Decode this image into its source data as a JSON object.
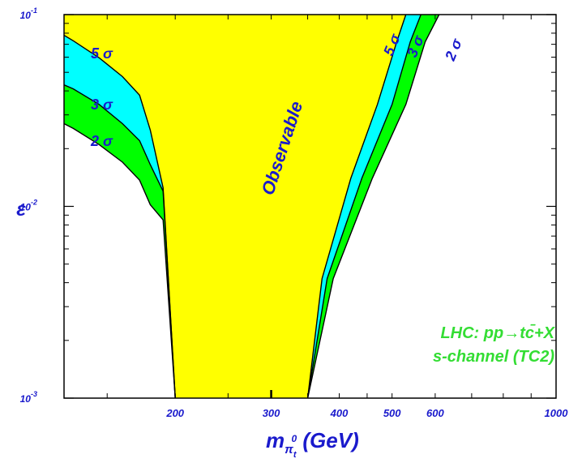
{
  "chart_data": {
    "type": "area",
    "title": "",
    "xlabel": {
      "main": "m",
      "sub": "π",
      "subsub": "t",
      "sup": "0",
      "unit": " (GeV)"
    },
    "ylabel": "ε",
    "x_scale": "log",
    "y_scale": "log",
    "xlim": [
      125,
      1000
    ],
    "ylim": [
      0.001,
      0.1
    ],
    "x_ticks": [
      {
        "value": 200,
        "label": "200"
      },
      {
        "value": 300,
        "label": "300"
      },
      {
        "value": 400,
        "label": "400"
      },
      {
        "value": 500,
        "label": "500"
      },
      {
        "value": 600,
        "label": "600"
      },
      {
        "value": 1000,
        "label": "1000"
      }
    ],
    "y_ticks": [
      {
        "value": 0.1,
        "base": "10",
        "exp": "-1"
      },
      {
        "value": 0.01,
        "base": "10",
        "exp": "-2"
      },
      {
        "value": 0.001,
        "base": "10",
        "exp": "-3"
      }
    ],
    "colors": {
      "observable": "#ffff00",
      "sigma5": "#00ffff",
      "sigma3": "#00ff00",
      "sigma2": "#00ff00",
      "label": "#1a1acc",
      "process_text": "#33dd33"
    },
    "series": [
      {
        "name": "5σ",
        "label": "5 σ",
        "left": [
          [
            125,
            0.078
          ],
          [
            130,
            0.073
          ],
          [
            145,
            0.0595
          ],
          [
            160,
            0.0475
          ],
          [
            172,
            0.038
          ],
          [
            180,
            0.025
          ],
          [
            190,
            0.0125
          ],
          [
            200,
            0.001
          ]
        ],
        "right": [
          [
            350,
            0.001
          ],
          [
            372,
            0.0042
          ],
          [
            420,
            0.014
          ],
          [
            470,
            0.034
          ],
          [
            510,
            0.072
          ],
          [
            530,
            0.1
          ]
        ]
      },
      {
        "name": "3σ",
        "label": "3 σ",
        "left": [
          [
            125,
            0.043
          ],
          [
            130,
            0.041
          ],
          [
            145,
            0.034
          ],
          [
            160,
            0.027
          ],
          [
            172,
            0.022
          ],
          [
            180,
            0.0165
          ],
          [
            190,
            0.012
          ],
          [
            200,
            0.001
          ]
        ],
        "right": [
          [
            350,
            0.001
          ],
          [
            380,
            0.0042
          ],
          [
            440,
            0.014
          ],
          [
            500,
            0.034
          ],
          [
            540,
            0.072
          ],
          [
            565,
            0.1
          ]
        ]
      },
      {
        "name": "2σ",
        "label": "2 σ",
        "left": [
          [
            125,
            0.027
          ],
          [
            130,
            0.0255
          ],
          [
            145,
            0.021
          ],
          [
            160,
            0.017
          ],
          [
            172,
            0.0137
          ],
          [
            180,
            0.0102
          ],
          [
            190,
            0.0085
          ],
          [
            200,
            0.001
          ]
        ],
        "right": [
          [
            350,
            0.001
          ],
          [
            390,
            0.0042
          ],
          [
            460,
            0.014
          ],
          [
            530,
            0.034
          ],
          [
            575,
            0.072
          ],
          [
            610,
            0.1
          ]
        ]
      }
    ],
    "annotations": {
      "observable": "Observable",
      "process_line1": "LHC: pp→tc̄+X",
      "process_line2": "s-channel (TC2)"
    }
  }
}
